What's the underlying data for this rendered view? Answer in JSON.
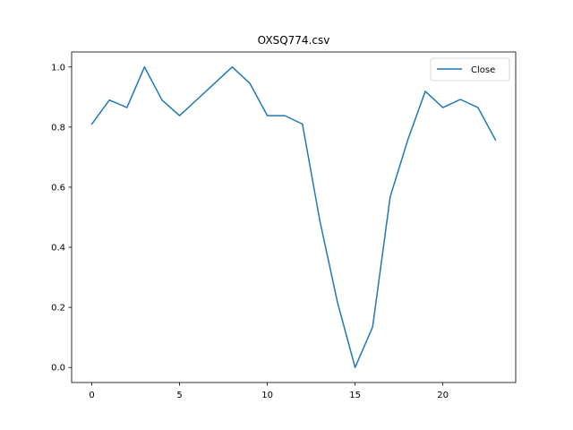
{
  "chart_data": {
    "type": "line",
    "title": "OXSQ774.csv",
    "xlabel": "",
    "ylabel": "",
    "x": [
      0,
      1,
      2,
      3,
      4,
      5,
      6,
      7,
      8,
      9,
      10,
      11,
      12,
      13,
      14,
      15,
      16,
      17,
      18,
      19,
      20,
      21,
      22,
      23
    ],
    "series": [
      {
        "name": "Close",
        "color": "#1f77b4",
        "values": [
          0.81,
          0.89,
          0.865,
          1.0,
          0.89,
          0.838,
          0.892,
          0.946,
          1.0,
          0.946,
          0.838,
          0.838,
          0.81,
          0.486,
          0.216,
          0.0,
          0.135,
          0.568,
          0.757,
          0.919,
          0.865,
          0.892,
          0.865,
          0.757
        ]
      }
    ],
    "xlim": [
      -1.15,
      24.15
    ],
    "ylim": [
      -0.05,
      1.05
    ],
    "xticks": [
      0,
      5,
      10,
      15,
      20
    ],
    "yticks": [
      0.0,
      0.2,
      0.4,
      0.6,
      0.8,
      1.0
    ],
    "xtick_labels": [
      "0",
      "5",
      "10",
      "15",
      "20"
    ],
    "ytick_labels": [
      "0.0",
      "0.2",
      "0.4",
      "0.6",
      "0.8",
      "1.0"
    ],
    "grid": false,
    "legend_position": "top-right"
  }
}
